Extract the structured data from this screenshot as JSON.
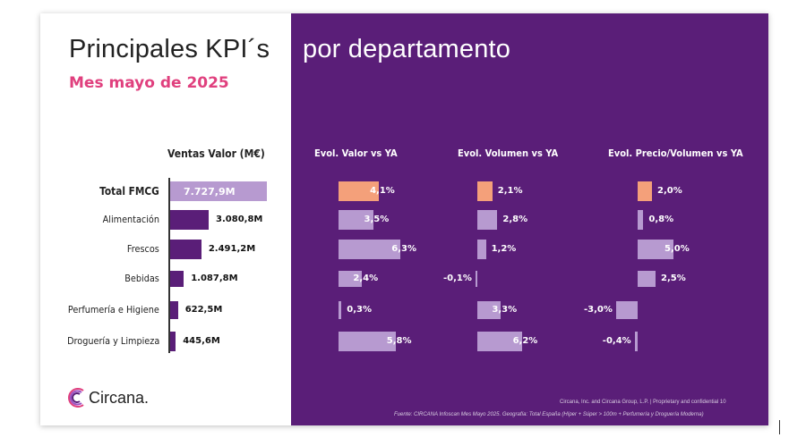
{
  "title_left": "Principales KPI´s",
  "title_right": "por departamento",
  "subtitle": "Mes mayo de 2025",
  "headers": {
    "ventas": "Ventas Valor (M€)",
    "valor": "Evol. Valor vs YA",
    "volumen": "Evol. Volumen vs YA",
    "precio": "Evol. Precio/Volumen vs YA"
  },
  "brand": "Circana.",
  "footer_line1": "Circana, Inc. and Circana Group, L.P. |  Proprietary and confidential     10",
  "footer_line2": "Fuente: CIRCANA Infoscan Mes Mayo 2025. Geografía: Total España (Híper + Súper > 100m + Perfumería y Droguería Moderna)",
  "colors": {
    "panel": "#5a1e78",
    "highlight": "#f4a07a",
    "bar_light": "#b79ad0",
    "bar_dark": "#5a1e78",
    "total_bar": "#b79ad0",
    "accent_pink": "#e0407e"
  },
  "chart_data": {
    "type": "bar",
    "categories": [
      "Total FMCG",
      "Alimentación",
      "Frescos",
      "Bebidas",
      "Perfumería e Higiene",
      "Droguería y Limpieza"
    ],
    "series": [
      {
        "name": "Ventas Valor (M€)",
        "values": [
          7727.9,
          3080.8,
          2491.2,
          1087.8,
          622.5,
          445.6
        ],
        "labels": [
          "7.727,9M",
          "3.080,8M",
          "2.491,2M",
          "1.087,8M",
          "622,5M",
          "445,6M"
        ]
      },
      {
        "name": "Evol. Valor vs YA",
        "values": [
          4.1,
          3.5,
          6.3,
          2.4,
          0.3,
          5.8
        ],
        "labels": [
          "4,1%",
          "3,5%",
          "6,3%",
          "2,4%",
          "0,3%",
          "5,8%"
        ]
      },
      {
        "name": "Evol. Volumen vs YA",
        "values": [
          2.1,
          2.8,
          1.2,
          -0.1,
          3.3,
          6.2
        ],
        "labels": [
          "2,1%",
          "2,8%",
          "1,2%",
          "-0,1%",
          "3,3%",
          "6,2%"
        ]
      },
      {
        "name": "Evol. Precio/Volumen vs YA",
        "values": [
          2.0,
          0.8,
          5.0,
          2.5,
          -3.0,
          -0.4
        ],
        "labels": [
          "2,0%",
          "0,8%",
          "5,0%",
          "2,5%",
          "-3,0%",
          "-0,4%"
        ]
      }
    ]
  }
}
